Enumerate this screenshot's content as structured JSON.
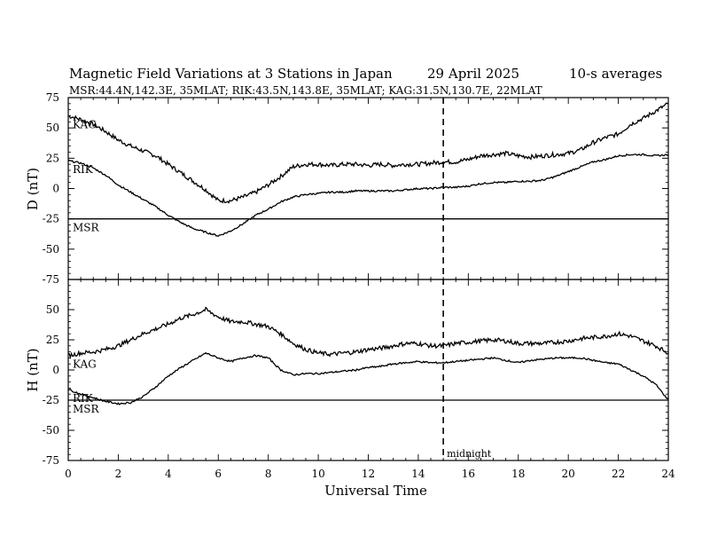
{
  "chart_data": {
    "type": "line",
    "title": {
      "main": "Magnetic Field Variations at 3 Stations in Japan",
      "date": "29  April     2025",
      "averaging": "10-s averages"
    },
    "subtitle": "MSR:44.4N,142.3E, 35MLAT;  RIK:43.5N,143.8E, 35MLAT;  KAG:31.5N,130.7E, 22MLAT",
    "xlabel": "Universal Time",
    "xlim": [
      0,
      24
    ],
    "x_ticks": [
      0,
      2,
      4,
      6,
      8,
      10,
      12,
      14,
      16,
      18,
      20,
      22,
      24
    ],
    "x_tick_labels": [
      "0",
      "2",
      "4",
      "6",
      "8",
      "10",
      "12",
      "14",
      "16",
      "18",
      "20",
      "22",
      "24"
    ],
    "vertical_marker": {
      "x": 15,
      "label": "midnight"
    },
    "grid": false,
    "panels": [
      {
        "component": "D",
        "ylabel": "D (nT)",
        "ylim": [
          -75,
          75
        ],
        "y_ticks": [
          75,
          50,
          25,
          0,
          -25,
          -50,
          -75
        ],
        "y_tick_labels": [
          "75",
          "50",
          "25",
          "0",
          "-25",
          "-50",
          "-75"
        ],
        "series": [
          {
            "name": "KAG",
            "x": [
              0,
              0.5,
              1,
              1.5,
              2,
              2.5,
              3,
              3.5,
              4,
              4.5,
              5,
              5.5,
              6,
              6.5,
              7,
              7.5,
              8,
              8.5,
              9,
              9.5,
              10,
              10.5,
              11,
              11.5,
              12,
              12.5,
              13,
              13.5,
              14,
              14.5,
              15,
              15.5,
              16,
              16.5,
              17,
              17.5,
              18,
              18.5,
              19,
              19.5,
              20,
              20.5,
              21,
              21.5,
              22,
              22.5,
              23,
              23.5,
              24
            ],
            "values": [
              60,
              57,
              53,
              47,
              40,
              35,
              31,
              27,
              20,
              13,
              6,
              -1,
              -10,
              -10,
              -7,
              -3,
              3,
              10,
              18,
              20,
              20,
              19,
              20,
              20,
              19,
              20,
              19,
              20,
              20,
              21,
              22,
              22,
              24,
              27,
              28,
              29,
              27,
              26,
              27,
              28,
              29,
              32,
              38,
              42,
              45,
              53,
              58,
              64,
              70
            ]
          },
          {
            "name": "RIK",
            "x": [
              0,
              0.5,
              1,
              1.5,
              2,
              2.5,
              3,
              3.5,
              4,
              4.5,
              5,
              5.5,
              6,
              6.5,
              7,
              7.5,
              8,
              8.5,
              9,
              9.5,
              10,
              10.5,
              11,
              11.5,
              12,
              12.5,
              13,
              13.5,
              14,
              14.5,
              15,
              15.5,
              16,
              16.5,
              17,
              17.5,
              18,
              18.5,
              19,
              19.5,
              20,
              20.5,
              21,
              21.5,
              22,
              22.5,
              23,
              23.5,
              24
            ],
            "values": [
              23,
              21,
              17,
              11,
              3,
              -3,
              -9,
              -15,
              -22,
              -28,
              -33,
              -36,
              -39,
              -35,
              -29,
              -22,
              -17,
              -11,
              -7,
              -5,
              -4,
              -3,
              -3,
              -2,
              -2,
              -2,
              -2,
              -1,
              0,
              0,
              1,
              1,
              2,
              4,
              5,
              5,
              6,
              6,
              7,
              10,
              14,
              18,
              22,
              24,
              27,
              28,
              28,
              27,
              28
            ]
          },
          {
            "name": "MSR",
            "x": [
              0,
              24
            ],
            "values": [
              -25,
              -25
            ]
          }
        ]
      },
      {
        "component": "H",
        "ylabel": "H (nT)",
        "ylim": [
          -75,
          75
        ],
        "y_ticks": [
          75,
          50,
          25,
          0,
          -25,
          -50,
          -75
        ],
        "y_tick_labels": [
          "75",
          "50",
          "25",
          "0",
          "-25",
          "-50",
          "-75"
        ],
        "series": [
          {
            "name": "KAG",
            "x": [
              0,
              0.5,
              1,
              1.5,
              2,
              2.5,
              3,
              3.5,
              4,
              4.5,
              5,
              5.5,
              6,
              6.5,
              7,
              7.5,
              8,
              8.5,
              9,
              9.5,
              10,
              10.5,
              11,
              11.5,
              12,
              12.5,
              13,
              13.5,
              14,
              14.5,
              15,
              15.5,
              16,
              16.5,
              17,
              17.5,
              18,
              18.5,
              19,
              19.5,
              20,
              20.5,
              21,
              21.5,
              22,
              22.5,
              23,
              23.5,
              24
            ],
            "values": [
              12,
              14,
              15,
              17,
              20,
              25,
              30,
              34,
              38,
              43,
              46,
              50,
              44,
              40,
              40,
              38,
              36,
              30,
              22,
              17,
              14,
              13,
              14,
              15,
              17,
              18,
              20,
              22,
              22,
              20,
              20,
              22,
              23,
              24,
              25,
              24,
              22,
              22,
              22,
              23,
              24,
              26,
              27,
              28,
              30,
              28,
              24,
              20,
              14
            ]
          },
          {
            "name": "RIK",
            "x": [
              0,
              0.5,
              1,
              1.5,
              2,
              2.5,
              3,
              3.5,
              4,
              4.5,
              5,
              5.5,
              6,
              6.5,
              7,
              7.5,
              8,
              8.5,
              9,
              9.5,
              10,
              10.5,
              11,
              11.5,
              12,
              12.5,
              13,
              13.5,
              14,
              14.5,
              15,
              15.5,
              16,
              16.5,
              17,
              17.5,
              18,
              18.5,
              19,
              19.5,
              20,
              20.5,
              21,
              21.5,
              22,
              22.5,
              23,
              23.5,
              24
            ],
            "values": [
              -16,
              -20,
              -23,
              -26,
              -28,
              -27,
              -22,
              -14,
              -5,
              2,
              8,
              14,
              10,
              7,
              10,
              12,
              10,
              0,
              -4,
              -3,
              -3,
              -2,
              -1,
              0,
              2,
              3,
              5,
              6,
              7,
              6,
              6,
              7,
              8,
              9,
              10,
              8,
              6,
              8,
              9,
              10,
              10,
              10,
              8,
              6,
              5,
              0,
              -5,
              -12,
              -25
            ]
          },
          {
            "name": "MSR",
            "x": [
              0,
              24
            ],
            "values": [
              -25,
              -25
            ]
          }
        ]
      }
    ]
  }
}
